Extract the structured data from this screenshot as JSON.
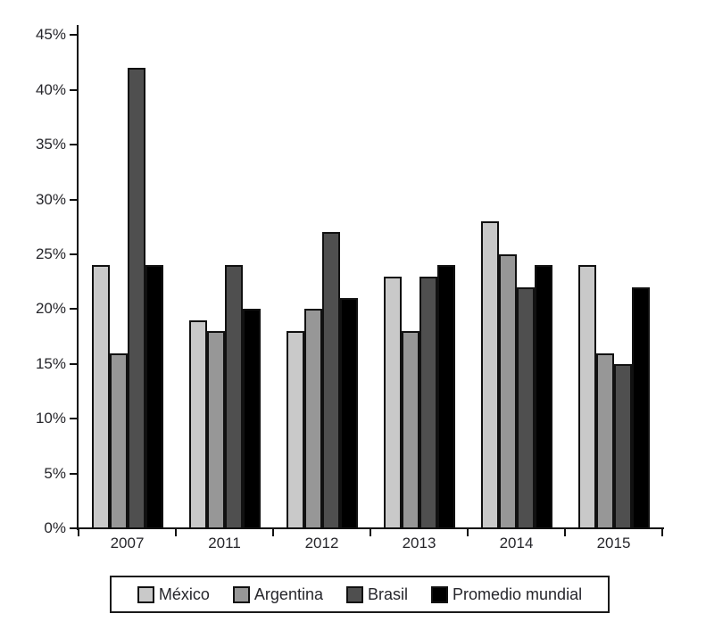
{
  "chart_data": {
    "type": "bar",
    "title": "",
    "xlabel": "",
    "ylabel": "",
    "grid": false,
    "legend_position": "bottom",
    "categories": [
      "2007",
      "2011",
      "2012",
      "2013",
      "2014",
      "2015"
    ],
    "series": [
      {
        "name": "México",
        "color": "#c9c9c9",
        "values": [
          24,
          19,
          18,
          23,
          28,
          24
        ]
      },
      {
        "name": "Argentina",
        "color": "#979797",
        "values": [
          16,
          18,
          20,
          18,
          25,
          16
        ]
      },
      {
        "name": "Brasil",
        "color": "#4f4f4f",
        "values": [
          42,
          24,
          27,
          23,
          22,
          15
        ]
      },
      {
        "name": "Promedio mundial",
        "color": "#000000",
        "values": [
          24,
          20,
          21,
          24,
          24,
          22
        ]
      }
    ],
    "ylim": [
      0,
      45
    ],
    "y_tick_interval": 5,
    "y_tick_values": [
      0,
      5,
      10,
      15,
      20,
      25,
      30,
      35,
      40,
      45
    ],
    "y_tick_labels": [
      "0%",
      "5%",
      "10%",
      "15%",
      "20%",
      "25%",
      "30%",
      "35%",
      "40%",
      "45%"
    ],
    "axis_color": "#111111",
    "bar_border_color": "#111111"
  }
}
